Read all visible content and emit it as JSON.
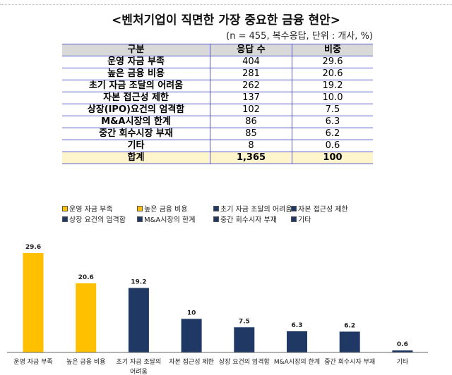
{
  "title": "<벤처기업이 직면한 가장 중요한 금융 현안>",
  "note": "(n = 455, 복수응답, 단위 : 개사, %)",
  "table": {
    "headers": [
      "구분",
      "응답 수",
      "비중"
    ],
    "rows": [
      [
        "운영 자금 부족",
        "404",
        "29.6"
      ],
      [
        "높은 금융 비용",
        "281",
        "20.6"
      ],
      [
        "초기 자금 조달의 어려움",
        "262",
        "19.2"
      ],
      [
        "자본 접근성 제한",
        "137",
        "10.0"
      ],
      [
        "상장(IPO)요건의 엄격함",
        "102",
        "7.5"
      ],
      [
        "M&A시장의 한계",
        "86",
        "6.3"
      ],
      [
        "중간 회수시장 부재",
        "85",
        "6.2"
      ],
      [
        "기타",
        "8",
        "0.6"
      ]
    ],
    "total": [
      "합계",
      "1,365",
      "100"
    ]
  },
  "chart_data": {
    "type": "bar",
    "categories": [
      "운영 자금 부족",
      "높은 금융 비용",
      "초기 자금 조달의 어려움",
      "자본 접근성 제한",
      "상장 요건의 엄격함",
      "M&A시장의 한계",
      "중간 회수시자 부재",
      "기타"
    ],
    "values": [
      29.6,
      20.6,
      19.2,
      10,
      7.5,
      6.3,
      6.2,
      0.6
    ],
    "colors": [
      "#ffc000",
      "#ffc000",
      "#1f3864",
      "#1f3864",
      "#1f3864",
      "#1f3864",
      "#1f3864",
      "#1f3864"
    ],
    "ylim": [
      0,
      30
    ],
    "grid": false,
    "legend_position": "top"
  }
}
